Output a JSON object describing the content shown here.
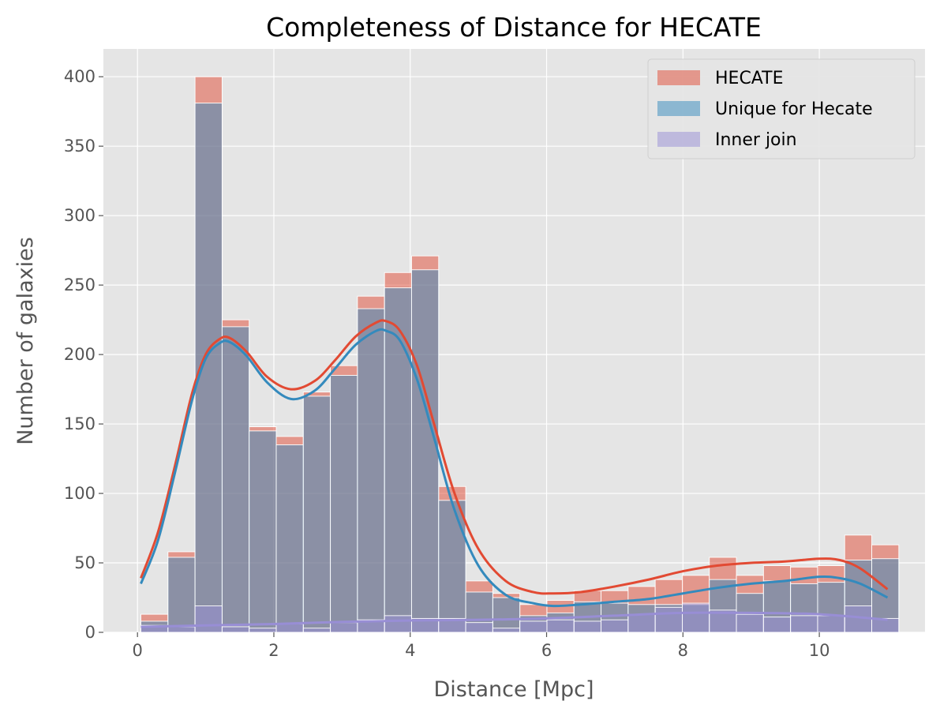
{
  "chart_data": {
    "type": "bar",
    "title": "Completeness of Distance for HECATE",
    "xlabel": "Distance [Mpc]",
    "ylabel": "Number of galaxies",
    "xlim": [
      -0.5,
      11.55
    ],
    "ylim": [
      0,
      420
    ],
    "xticks": [
      0,
      2,
      4,
      6,
      8,
      10
    ],
    "yticks": [
      0,
      50,
      100,
      150,
      200,
      250,
      300,
      350,
      400
    ],
    "grid": true,
    "legend_position": "upper-right",
    "bin_start": 0.05,
    "bin_width": 0.397,
    "series": [
      {
        "name": "HECATE",
        "color": "#E24A33",
        "values": [
          13,
          58,
          400,
          225,
          148,
          141,
          173,
          192,
          242,
          259,
          271,
          105,
          37,
          28,
          20,
          23,
          30,
          30,
          33,
          38,
          41,
          54,
          41,
          48,
          47,
          48,
          70,
          63
        ],
        "kde": [
          [
            0.05,
            39
          ],
          [
            0.3,
            72
          ],
          [
            0.55,
            120
          ],
          [
            0.8,
            172
          ],
          [
            1.0,
            200
          ],
          [
            1.2,
            211
          ],
          [
            1.35,
            212
          ],
          [
            1.6,
            202
          ],
          [
            1.9,
            184
          ],
          [
            2.25,
            175
          ],
          [
            2.6,
            181
          ],
          [
            2.9,
            196
          ],
          [
            3.2,
            213
          ],
          [
            3.5,
            223
          ],
          [
            3.65,
            224
          ],
          [
            3.85,
            217
          ],
          [
            4.1,
            192
          ],
          [
            4.35,
            150
          ],
          [
            4.65,
            100
          ],
          [
            5.0,
            60
          ],
          [
            5.4,
            37
          ],
          [
            5.8,
            29
          ],
          [
            6.1,
            28
          ],
          [
            6.5,
            29
          ],
          [
            7.0,
            33
          ],
          [
            7.5,
            38
          ],
          [
            8.0,
            44
          ],
          [
            8.5,
            48
          ],
          [
            9.0,
            50
          ],
          [
            9.5,
            51
          ],
          [
            10.0,
            53
          ],
          [
            10.3,
            52
          ],
          [
            10.6,
            46
          ],
          [
            11.0,
            31
          ]
        ]
      },
      {
        "name": "Unique for Hecate",
        "color": "#348ABD",
        "values": [
          8,
          54,
          381,
          220,
          145,
          135,
          170,
          185,
          233,
          248,
          261,
          95,
          29,
          25,
          12,
          14,
          22,
          21,
          20,
          20,
          20,
          38,
          28,
          37,
          35,
          36,
          52,
          53
        ],
        "kde": [
          [
            0.05,
            35
          ],
          [
            0.3,
            66
          ],
          [
            0.55,
            115
          ],
          [
            0.8,
            167
          ],
          [
            1.0,
            197
          ],
          [
            1.2,
            208
          ],
          [
            1.35,
            209
          ],
          [
            1.6,
            199
          ],
          [
            1.9,
            180
          ],
          [
            2.25,
            168
          ],
          [
            2.6,
            174
          ],
          [
            2.9,
            190
          ],
          [
            3.2,
            207
          ],
          [
            3.5,
            217
          ],
          [
            3.65,
            217
          ],
          [
            3.85,
            210
          ],
          [
            4.1,
            182
          ],
          [
            4.35,
            140
          ],
          [
            4.65,
            88
          ],
          [
            5.0,
            48
          ],
          [
            5.4,
            27
          ],
          [
            5.8,
            21
          ],
          [
            6.1,
            19
          ],
          [
            6.5,
            20
          ],
          [
            7.0,
            22
          ],
          [
            7.5,
            24
          ],
          [
            8.0,
            28
          ],
          [
            8.5,
            32
          ],
          [
            9.0,
            35
          ],
          [
            9.5,
            37
          ],
          [
            10.0,
            40
          ],
          [
            10.3,
            39
          ],
          [
            10.6,
            35
          ],
          [
            11.0,
            25
          ]
        ]
      },
      {
        "name": "Inner join",
        "color": "#988ED5",
        "values": [
          5,
          4,
          19,
          4,
          3,
          6,
          3,
          7,
          9,
          12,
          10,
          10,
          7,
          3,
          8,
          9,
          8,
          9,
          13,
          18,
          21,
          16,
          13,
          11,
          12,
          12,
          19,
          10
        ],
        "kde": [
          [
            0.05,
            4
          ],
          [
            1.0,
            5
          ],
          [
            2.0,
            6
          ],
          [
            3.0,
            7.5
          ],
          [
            4.0,
            8.5
          ],
          [
            5.0,
            9
          ],
          [
            6.0,
            10
          ],
          [
            7.0,
            12
          ],
          [
            8.0,
            14
          ],
          [
            9.0,
            14
          ],
          [
            10.0,
            13
          ],
          [
            11.0,
            9
          ]
        ]
      }
    ]
  }
}
